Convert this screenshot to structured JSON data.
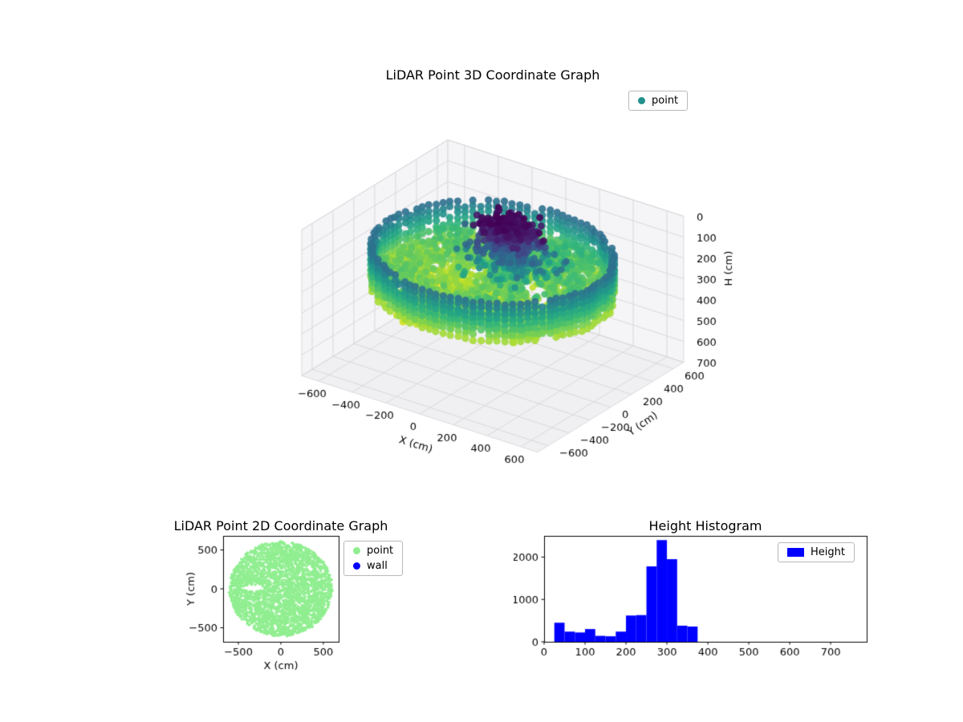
{
  "colors": {
    "point3d_legend": "#21918c",
    "point2d": "#90ee90",
    "wall": "#0000ff",
    "hist_bar": "#0000ff",
    "pane": "#f5f5f7",
    "grid": "#d6d6d9"
  },
  "plot3d": {
    "title": "LiDAR Point 3D Coordinate Graph",
    "legend_label": "point",
    "xlabel": "X (cm)",
    "ylabel": "Y (cm)",
    "zlabel": "H (cm)"
  },
  "plot2d": {
    "title": "LiDAR Point 2D Coordinate Graph",
    "legend": [
      {
        "label": "point",
        "color": "#90ee90"
      },
      {
        "label": "wall",
        "color": "#0000ff"
      }
    ],
    "xlabel": "X (cm)",
    "ylabel": "Y (cm)"
  },
  "hist": {
    "title": "Height Histogram",
    "legend_label": "Height",
    "legend_color": "#0000ff"
  },
  "chart_data": [
    {
      "type": "scatter",
      "projection": "3d",
      "title": "LiDAR Point 3D Coordinate Graph",
      "xlabel": "X (cm)",
      "ylabel": "Y (cm)",
      "zlabel": "H (cm)",
      "legend": [
        "point"
      ],
      "xticks": [
        -600,
        -400,
        -200,
        0,
        200,
        400,
        600
      ],
      "yticks": [
        -600,
        -400,
        -200,
        0,
        200,
        400,
        600
      ],
      "zticks": [
        0,
        100,
        200,
        300,
        400,
        500,
        600,
        700
      ],
      "xlim": [
        -700,
        700
      ],
      "ylim": [
        -700,
        700
      ],
      "zlim": [
        0,
        700
      ],
      "zaxis_inverted": true,
      "colormap": "viridis",
      "color_by": "H: vmin 0 (dark purple, ceiling cluster at top) to vmax ~375 (yellow, floor)",
      "point_cloud_summary": {
        "shape": "circular room scan disk, radius ~620 cm",
        "wall_columns": {
          "count": 96,
          "radius_cm": 620,
          "h_range_cm": [
            140,
            320
          ],
          "color": "teal to green"
        },
        "floor_points": {
          "h_range_cm": [
            240,
            375
          ],
          "color": "green to yellow",
          "yellow_patch_center_xy": [
            -170,
            -30
          ],
          "voids": "several gaps right of center"
        },
        "ceiling_cluster": {
          "center_xy_cm": [
            70,
            55
          ],
          "h_range_cm": [
            0,
            225
          ],
          "color": "dark purple to blue"
        }
      }
    },
    {
      "type": "scatter",
      "title": "LiDAR Point 2D Coordinate Graph",
      "xlabel": "X (cm)",
      "ylabel": "Y (cm)",
      "xticks": [
        -500,
        0,
        500
      ],
      "yticks": [
        -500,
        0,
        500
      ],
      "xlim": [
        -680,
        680
      ],
      "ylim": [
        -680,
        680
      ],
      "series": [
        {
          "name": "point",
          "color": "#90ee90",
          "shape": "filled disk centered (0,0), radius ~620 cm, small void near (-330, 10)"
        },
        {
          "name": "wall",
          "color": "#0000ff",
          "note": "occluded beneath point layer, not visibly distinct"
        }
      ]
    },
    {
      "type": "bar",
      "subtype": "histogram",
      "title": "Height Histogram",
      "legend": [
        "Height"
      ],
      "bar_color": "#0000ff",
      "bin_start": 25,
      "bin_width": 25,
      "bin_edges": [
        25,
        50,
        75,
        100,
        125,
        150,
        175,
        200,
        225,
        250,
        275,
        300,
        325,
        350,
        375
      ],
      "counts": [
        450,
        240,
        220,
        300,
        140,
        130,
        240,
        620,
        630,
        1780,
        2400,
        1950,
        380,
        360
      ],
      "xticks": [
        0,
        100,
        200,
        300,
        400,
        500,
        600,
        700
      ],
      "yticks": [
        0,
        1000,
        2000
      ],
      "xlim": [
        0,
        788
      ],
      "ylim": [
        0,
        2500
      ],
      "xlabel": "",
      "ylabel": ""
    }
  ]
}
